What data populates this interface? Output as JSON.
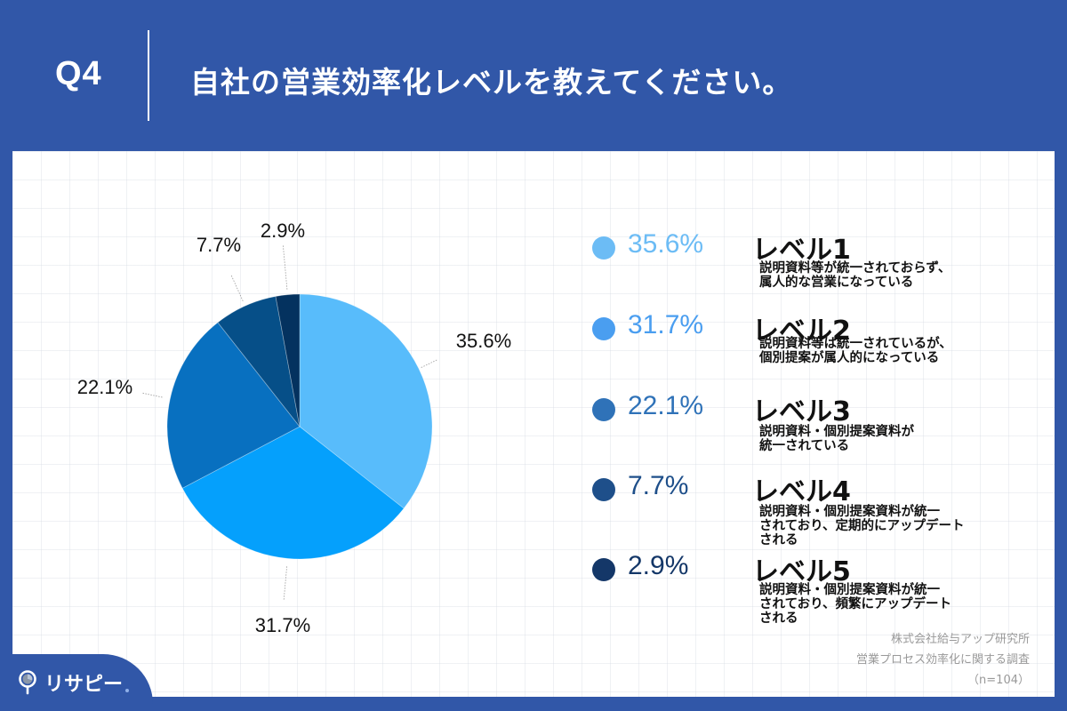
{
  "header": {
    "question_number": "Q4",
    "question_text": "自社の営業効率化レベルを教えてください。"
  },
  "legend": [
    {
      "pct": "35.6%",
      "level": "レベル1",
      "desc": "説明資料等が統一されておらず、\n属人的な営業になっている",
      "color": "#6cbcf5"
    },
    {
      "pct": "31.7%",
      "level": "レベル2",
      "desc": "説明資料等は統一されているが、\n個別提案が属人的になっている",
      "color": "#4a9ef0"
    },
    {
      "pct": "22.1%",
      "level": "レベル3",
      "desc": "説明資料・個別提案資料が\n統一されている",
      "color": "#2f72b8"
    },
    {
      "pct": "7.7%",
      "level": "レベル4",
      "desc": "説明資料・個別提案資料が統一\nされており、定期的にアップデート\nされる",
      "color": "#1e4f8a"
    },
    {
      "pct": "2.9%",
      "level": "レベル5",
      "desc": "説明資料・個別提案資料が統一\nされており、頻繁にアップデート\nされる",
      "color": "#143768"
    }
  ],
  "source": {
    "line1": "株式会社給与アップ研究所",
    "line2": "営業プロセス効率化に関する調査",
    "line3": "（n=104）"
  },
  "brand": {
    "name": "リサピー"
  },
  "chart_data": {
    "type": "pie",
    "title": "自社の営業効率化レベルを教えてください。",
    "categories": [
      "レベル1",
      "レベル2",
      "レベル3",
      "レベル4",
      "レベル5"
    ],
    "values": [
      35.6,
      31.7,
      22.1,
      7.7,
      2.9
    ],
    "labels": [
      "35.6%",
      "31.7%",
      "22.1%",
      "7.7%",
      "2.9%"
    ],
    "colors": [
      "#58bcfb",
      "#05a0fc",
      "#0870c0",
      "#064f88",
      "#04325f"
    ],
    "start_angle": "12 o'clock, clockwise",
    "legend_position": "right",
    "n": 104
  }
}
